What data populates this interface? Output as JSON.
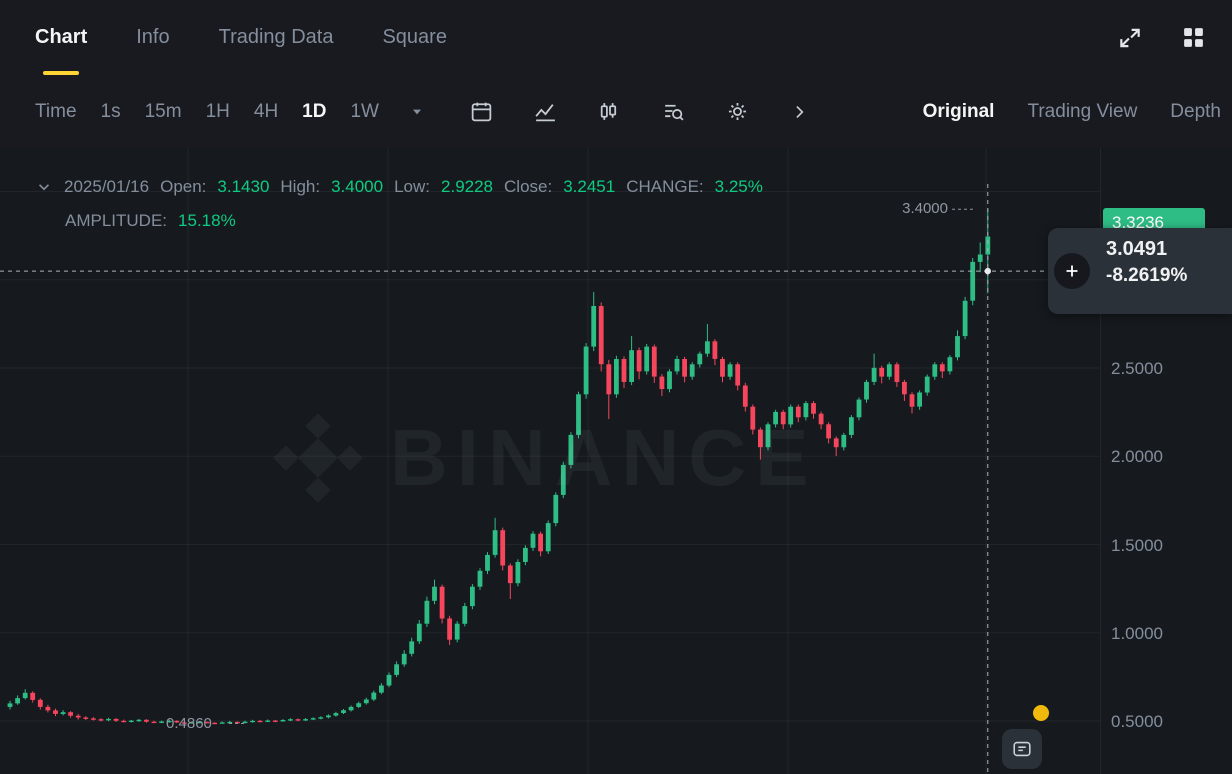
{
  "header": {
    "tabs": [
      {
        "label": "Chart",
        "active": true
      },
      {
        "label": "Info",
        "active": false
      },
      {
        "label": "Trading Data",
        "active": false
      },
      {
        "label": "Square",
        "active": false
      }
    ],
    "icons": [
      "fullscreen-icon",
      "apps-grid-icon"
    ]
  },
  "toolbar": {
    "intervals": [
      {
        "label": "Time",
        "active": false
      },
      {
        "label": "1s",
        "active": false
      },
      {
        "label": "15m",
        "active": false
      },
      {
        "label": "1H",
        "active": false
      },
      {
        "label": "4H",
        "active": false
      },
      {
        "label": "1D",
        "active": true
      },
      {
        "label": "1W",
        "active": false
      }
    ],
    "icons": [
      "calendar-icon",
      "line-chart-icon",
      "candlestick-icon",
      "indicators-icon",
      "gear-icon",
      "chevron-right-icon"
    ],
    "views": [
      {
        "label": "Original",
        "active": true
      },
      {
        "label": "Trading View",
        "active": false
      },
      {
        "label": "Depth",
        "active": false
      }
    ]
  },
  "ohlc": {
    "date": "2025/01/16",
    "open_label": "Open:",
    "open": "3.1430",
    "high_label": "High:",
    "high": "3.4000",
    "low_label": "Low:",
    "low": "2.9228",
    "close_label": "Close:",
    "close": "3.2451",
    "change_label": "CHANGE:",
    "change": "3.25%",
    "amplitude_label": "AMPLITUDE:",
    "amplitude": "15.18%"
  },
  "watermark": {
    "text": "BINANCE"
  },
  "price_axis": {
    "ticks": [
      {
        "label": "2.5000",
        "price": 2.5
      },
      {
        "label": "2.0000",
        "price": 2.0
      },
      {
        "label": "1.5000",
        "price": 1.5
      },
      {
        "label": "1.0000",
        "price": 1.0
      },
      {
        "label": "0.5000",
        "price": 0.5
      }
    ],
    "last_price_badge": {
      "text": "3.3236",
      "price": 3.3236
    }
  },
  "crosshair_tooltip": {
    "price": "3.0491",
    "change": "-8.2619%"
  },
  "markers": {
    "high": {
      "text": "3.4000",
      "price": 3.4
    },
    "low": {
      "text": "0.4860",
      "price": 0.486
    }
  },
  "colors": {
    "up": "#2ebd85",
    "down": "#f6465d",
    "accent": "#fcd535",
    "text_green": "#0ecb81",
    "grey": "#848e9c",
    "badge_green": "#2ebd85",
    "notification": "#f0b90b",
    "bg": "#181a20",
    "chart_bg": "#161a1e"
  },
  "chart_data": {
    "type": "candlestick",
    "interval": "1D",
    "ylim": [
      0.2,
      3.75
    ],
    "y_gridline_prices": [
      0.5,
      1.0,
      1.5,
      2.0,
      2.5,
      3.0,
      3.5
    ],
    "crosshair": {
      "price": 3.0491,
      "index": 129
    },
    "candles": [
      [
        0.58,
        0.615,
        0.565,
        0.6
      ],
      [
        0.6,
        0.645,
        0.592,
        0.63
      ],
      [
        0.63,
        0.68,
        0.622,
        0.66
      ],
      [
        0.66,
        0.668,
        0.605,
        0.62
      ],
      [
        0.62,
        0.628,
        0.565,
        0.58
      ],
      [
        0.58,
        0.592,
        0.548,
        0.56
      ],
      [
        0.56,
        0.57,
        0.528,
        0.54
      ],
      [
        0.54,
        0.562,
        0.532,
        0.55
      ],
      [
        0.55,
        0.556,
        0.518,
        0.53
      ],
      [
        0.53,
        0.54,
        0.508,
        0.52
      ],
      [
        0.52,
        0.528,
        0.506,
        0.515
      ],
      [
        0.515,
        0.522,
        0.502,
        0.51
      ],
      [
        0.51,
        0.516,
        0.498,
        0.505
      ],
      [
        0.505,
        0.518,
        0.499,
        0.512
      ],
      [
        0.512,
        0.516,
        0.495,
        0.501
      ],
      [
        0.501,
        0.508,
        0.492,
        0.497
      ],
      [
        0.497,
        0.506,
        0.491,
        0.502
      ],
      [
        0.502,
        0.512,
        0.495,
        0.507
      ],
      [
        0.507,
        0.51,
        0.49,
        0.496
      ],
      [
        0.496,
        0.501,
        0.489,
        0.492
      ],
      [
        0.492,
        0.503,
        0.488,
        0.497
      ],
      [
        0.497,
        0.507,
        0.49,
        0.501
      ],
      [
        0.501,
        0.504,
        0.488,
        0.492
      ],
      [
        0.492,
        0.496,
        0.4875,
        0.489
      ],
      [
        0.489,
        0.498,
        0.4872,
        0.493
      ],
      [
        0.493,
        0.5,
        0.488,
        0.495
      ],
      [
        0.495,
        0.497,
        0.487,
        0.49
      ],
      [
        0.49,
        0.493,
        0.4868,
        0.488
      ],
      [
        0.488,
        0.498,
        0.4871,
        0.492
      ],
      [
        0.492,
        0.501,
        0.4875,
        0.495
      ],
      [
        0.495,
        0.4975,
        0.486,
        0.489
      ],
      [
        0.489,
        0.502,
        0.4878,
        0.496
      ],
      [
        0.496,
        0.507,
        0.4905,
        0.501
      ],
      [
        0.501,
        0.506,
        0.492,
        0.4985
      ],
      [
        0.4985,
        0.509,
        0.4935,
        0.503
      ],
      [
        0.503,
        0.5065,
        0.4925,
        0.5
      ],
      [
        0.5,
        0.511,
        0.4955,
        0.5055
      ],
      [
        0.5055,
        0.516,
        0.4995,
        0.51
      ],
      [
        0.51,
        0.5135,
        0.4985,
        0.5045
      ],
      [
        0.5045,
        0.517,
        0.5,
        0.511
      ],
      [
        0.511,
        0.521,
        0.505,
        0.516
      ],
      [
        0.516,
        0.527,
        0.5095,
        0.521
      ],
      [
        0.521,
        0.538,
        0.5145,
        0.531
      ],
      [
        0.531,
        0.552,
        0.525,
        0.545
      ],
      [
        0.545,
        0.568,
        0.539,
        0.561
      ],
      [
        0.561,
        0.588,
        0.554,
        0.58
      ],
      [
        0.58,
        0.61,
        0.573,
        0.601
      ],
      [
        0.601,
        0.632,
        0.593,
        0.622
      ],
      [
        0.622,
        0.672,
        0.613,
        0.661
      ],
      [
        0.661,
        0.714,
        0.652,
        0.701
      ],
      [
        0.701,
        0.775,
        0.691,
        0.761
      ],
      [
        0.761,
        0.838,
        0.749,
        0.821
      ],
      [
        0.821,
        0.901,
        0.807,
        0.881
      ],
      [
        0.881,
        0.972,
        0.866,
        0.951
      ],
      [
        0.951,
        1.072,
        0.936,
        1.051
      ],
      [
        1.051,
        1.205,
        1.033,
        1.181
      ],
      [
        1.181,
        1.301,
        1.161,
        1.261
      ],
      [
        1.261,
        1.273,
        1.053,
        1.081
      ],
      [
        1.081,
        1.096,
        0.931,
        0.961
      ],
      [
        0.961,
        1.066,
        0.946,
        1.051
      ],
      [
        1.051,
        1.169,
        1.036,
        1.151
      ],
      [
        1.151,
        1.276,
        1.133,
        1.261
      ],
      [
        1.261,
        1.366,
        1.243,
        1.351
      ],
      [
        1.351,
        1.457,
        1.333,
        1.441
      ],
      [
        1.441,
        1.651,
        1.426,
        1.581
      ],
      [
        1.581,
        1.596,
        1.353,
        1.381
      ],
      [
        1.381,
        1.393,
        1.191,
        1.281
      ],
      [
        1.281,
        1.416,
        1.263,
        1.401
      ],
      [
        1.401,
        1.496,
        1.383,
        1.481
      ],
      [
        1.481,
        1.576,
        1.463,
        1.561
      ],
      [
        1.561,
        1.573,
        1.433,
        1.461
      ],
      [
        1.461,
        1.636,
        1.446,
        1.621
      ],
      [
        1.621,
        1.796,
        1.603,
        1.781
      ],
      [
        1.781,
        1.969,
        1.763,
        1.951
      ],
      [
        1.951,
        2.136,
        1.931,
        2.121
      ],
      [
        2.121,
        2.366,
        2.101,
        2.351
      ],
      [
        2.351,
        2.641,
        2.326,
        2.621
      ],
      [
        2.621,
        2.931,
        2.596,
        2.851
      ],
      [
        2.851,
        2.871,
        2.481,
        2.521
      ],
      [
        2.521,
        2.546,
        2.211,
        2.351
      ],
      [
        2.351,
        2.569,
        2.331,
        2.551
      ],
      [
        2.551,
        2.566,
        2.386,
        2.421
      ],
      [
        2.421,
        2.681,
        2.403,
        2.601
      ],
      [
        2.601,
        2.616,
        2.436,
        2.481
      ],
      [
        2.481,
        2.636,
        2.463,
        2.621
      ],
      [
        2.621,
        2.633,
        2.416,
        2.451
      ],
      [
        2.451,
        2.466,
        2.341,
        2.381
      ],
      [
        2.381,
        2.493,
        2.363,
        2.481
      ],
      [
        2.481,
        2.569,
        2.463,
        2.551
      ],
      [
        2.551,
        2.563,
        2.419,
        2.451
      ],
      [
        2.451,
        2.533,
        2.433,
        2.521
      ],
      [
        2.521,
        2.593,
        2.503,
        2.581
      ],
      [
        2.581,
        2.749,
        2.563,
        2.651
      ],
      [
        2.651,
        2.663,
        2.516,
        2.551
      ],
      [
        2.551,
        2.563,
        2.419,
        2.451
      ],
      [
        2.451,
        2.533,
        2.433,
        2.521
      ],
      [
        2.521,
        2.533,
        2.373,
        2.401
      ],
      [
        2.401,
        2.416,
        2.253,
        2.281
      ],
      [
        2.281,
        2.293,
        2.123,
        2.151
      ],
      [
        2.151,
        2.163,
        1.981,
        2.051
      ],
      [
        2.051,
        2.193,
        2.033,
        2.181
      ],
      [
        2.181,
        2.263,
        2.163,
        2.251
      ],
      [
        2.251,
        2.263,
        2.153,
        2.181
      ],
      [
        2.181,
        2.293,
        2.163,
        2.281
      ],
      [
        2.281,
        2.293,
        2.193,
        2.221
      ],
      [
        2.221,
        2.313,
        2.203,
        2.301
      ],
      [
        2.301,
        2.313,
        2.213,
        2.241
      ],
      [
        2.241,
        2.253,
        2.153,
        2.181
      ],
      [
        2.181,
        2.193,
        2.073,
        2.101
      ],
      [
        2.101,
        2.113,
        2.001,
        2.051
      ],
      [
        2.051,
        2.133,
        2.033,
        2.121
      ],
      [
        2.121,
        2.233,
        2.103,
        2.221
      ],
      [
        2.221,
        2.333,
        2.203,
        2.321
      ],
      [
        2.321,
        2.433,
        2.303,
        2.421
      ],
      [
        2.421,
        2.581,
        2.403,
        2.501
      ],
      [
        2.501,
        2.513,
        2.413,
        2.451
      ],
      [
        2.451,
        2.533,
        2.433,
        2.521
      ],
      [
        2.521,
        2.533,
        2.393,
        2.421
      ],
      [
        2.421,
        2.433,
        2.313,
        2.351
      ],
      [
        2.351,
        2.363,
        2.243,
        2.281
      ],
      [
        2.281,
        2.373,
        2.263,
        2.361
      ],
      [
        2.361,
        2.463,
        2.343,
        2.451
      ],
      [
        2.451,
        2.533,
        2.433,
        2.521
      ],
      [
        2.521,
        2.533,
        2.443,
        2.481
      ],
      [
        2.481,
        2.573,
        2.463,
        2.561
      ],
      [
        2.561,
        2.713,
        2.543,
        2.681
      ],
      [
        2.681,
        2.903,
        2.663,
        2.881
      ],
      [
        2.881,
        3.123,
        2.856,
        3.101
      ],
      [
        3.101,
        3.211,
        3.043,
        3.143
      ],
      [
        3.143,
        3.4,
        2.9228,
        3.2451
      ]
    ]
  }
}
